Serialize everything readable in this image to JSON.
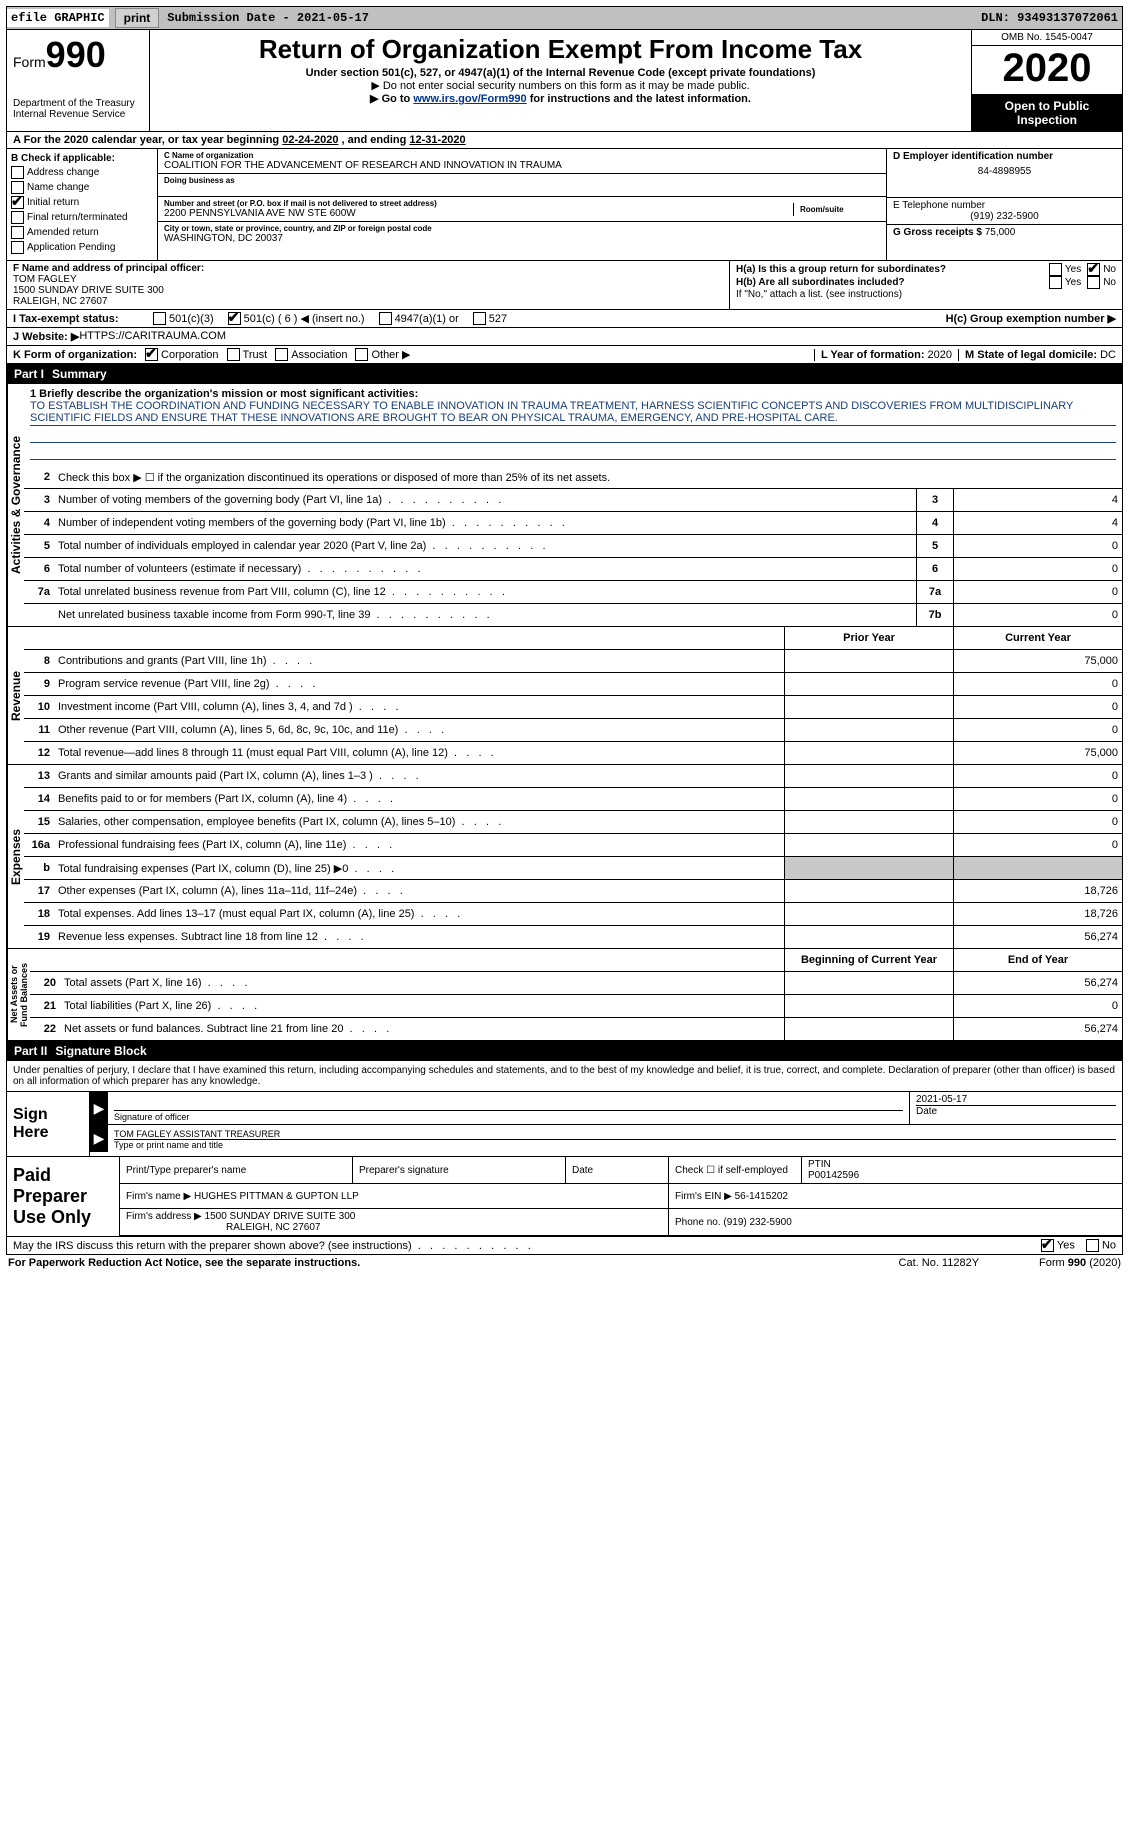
{
  "topbar": {
    "efile": "efile GRAPHIC",
    "print": "print",
    "sub_label": "Submission Date - ",
    "sub_date": "2021-05-17",
    "dln_label": "DLN: ",
    "dln": "93493137072061"
  },
  "header": {
    "form": "Form",
    "num": "990",
    "dept": "Department of the Treasury\nInternal Revenue Service",
    "title": "Return of Organization Exempt From Income Tax",
    "sub1": "Under section 501(c), 527, or 4947(a)(1) of the Internal Revenue Code (except private foundations)",
    "sub2": "▶ Do not enter social security numbers on this form as it may be made public.",
    "sub3_a": "▶ Go to ",
    "sub3_link": "www.irs.gov/Form990",
    "sub3_b": " for instructions and the latest information.",
    "omb": "OMB No. 1545-0047",
    "year": "2020",
    "opi": "Open to Public Inspection"
  },
  "A": {
    "text_a": "A For the 2020 calendar year, or tax year beginning ",
    "begin": "02-24-2020",
    "text_b": "   , and ending ",
    "end": "12-31-2020"
  },
  "B": {
    "title": "B Check if applicable:",
    "items": [
      {
        "label": "Address change",
        "checked": false
      },
      {
        "label": "Name change",
        "checked": false
      },
      {
        "label": "Initial return",
        "checked": true
      },
      {
        "label": "Final return/terminated",
        "checked": false
      },
      {
        "label": "Amended return",
        "checked": false
      },
      {
        "label": "Application Pending",
        "checked": false
      }
    ]
  },
  "C": {
    "name_label": "C Name of organization",
    "name": "COALITION FOR THE ADVANCEMENT OF RESEARCH AND INNOVATION IN TRAUMA",
    "dba_label": "Doing business as",
    "dba": "",
    "addr_label": "Number and street (or P.O. box if mail is not delivered to street address)",
    "room_label": "Room/suite",
    "addr": "2200 PENNSYLVANIA AVE NW STE 600W",
    "city_label": "City or town, state or province, country, and ZIP or foreign postal code",
    "city": "WASHINGTON, DC  20037"
  },
  "D": {
    "label": "D Employer identification number",
    "ein": "84-4898955"
  },
  "E": {
    "label": "E Telephone number",
    "phone": "(919) 232-5900"
  },
  "G": {
    "label": "G Gross receipts $ ",
    "val": "75,000"
  },
  "F": {
    "label": "F  Name and address of principal officer:",
    "name": "TOM FAGLEY",
    "addr1": "1500 SUNDAY DRIVE SUITE 300",
    "addr2": "RALEIGH, NC  27607"
  },
  "H": {
    "a": "H(a)  Is this a group return for subordinates?",
    "a_yes": false,
    "a_no": true,
    "b": "H(b)  Are all subordinates included?",
    "b_note": "If \"No,\" attach a list. (see instructions)",
    "c": "H(c)  Group exemption number ▶"
  },
  "I": {
    "label": "I   Tax-exempt status:",
    "c3": false,
    "c6": true,
    "c6_text": "501(c) ( 6 ) ◀ (insert no.)",
    "a4947": "4947(a)(1) or",
    "s527": "527"
  },
  "J": {
    "label": "J   Website: ▶ ",
    "url": "HTTPS://CARITRAUMA.COM"
  },
  "K": {
    "label": "K Form of organization:",
    "corp": true,
    "trust": false,
    "assoc": false,
    "other": false,
    "corp_t": "Corporation",
    "trust_t": "Trust",
    "assoc_t": "Association",
    "other_t": "Other ▶"
  },
  "L": {
    "label": "L Year of formation: ",
    "val": "2020"
  },
  "M": {
    "label": "M State of legal domicile: ",
    "val": "DC"
  },
  "part1": {
    "name": "Part I",
    "title": "Summary"
  },
  "sec_labels": {
    "ag": "Activities & Governance",
    "rev": "Revenue",
    "exp": "Expenses",
    "na": "Net Assets or\nFund Balances"
  },
  "q1": {
    "label": "1  Briefly describe the organization's mission or most significant activities:",
    "text": "TO ESTABLISH THE COORDINATION AND FUNDING NECESSARY TO ENABLE INNOVATION IN TRAUMA TREATMENT, HARNESS SCIENTIFIC CONCEPTS AND DISCOVERIES FROM MULTIDISCIPLINARY SCIENTIFIC FIELDS AND ENSURE THAT THESE INNOVATIONS ARE BROUGHT TO BEAR ON PHYSICAL TRAUMA, EMERGENCY, AND PRE-HOSPITAL CARE."
  },
  "rows_ag": [
    {
      "n": "2",
      "desc": "Check this box ▶ ☐ if the organization discontinued its operations or disposed of more than 25% of its net assets.",
      "box": "",
      "val": ""
    },
    {
      "n": "3",
      "desc": "Number of voting members of the governing body (Part VI, line 1a)",
      "box": "3",
      "val": "4"
    },
    {
      "n": "4",
      "desc": "Number of independent voting members of the governing body (Part VI, line 1b)",
      "box": "4",
      "val": "4"
    },
    {
      "n": "5",
      "desc": "Total number of individuals employed in calendar year 2020 (Part V, line 2a)",
      "box": "5",
      "val": "0"
    },
    {
      "n": "6",
      "desc": "Total number of volunteers (estimate if necessary)",
      "box": "6",
      "val": "0"
    },
    {
      "n": "7a",
      "desc": "Total unrelated business revenue from Part VIII, column (C), line 12",
      "box": "7a",
      "val": "0"
    },
    {
      "n": "",
      "desc": "Net unrelated business taxable income from Form 990-T, line 39",
      "box": "7b",
      "val": "0"
    }
  ],
  "colhdrs": {
    "prior": "Prior Year",
    "current": "Current Year"
  },
  "rows_rev": [
    {
      "n": "8",
      "desc": "Contributions and grants (Part VIII, line 1h)",
      "prior": "",
      "cur": "75,000"
    },
    {
      "n": "9",
      "desc": "Program service revenue (Part VIII, line 2g)",
      "prior": "",
      "cur": "0"
    },
    {
      "n": "10",
      "desc": "Investment income (Part VIII, column (A), lines 3, 4, and 7d )",
      "prior": "",
      "cur": "0"
    },
    {
      "n": "11",
      "desc": "Other revenue (Part VIII, column (A), lines 5, 6d, 8c, 9c, 10c, and 11e)",
      "prior": "",
      "cur": "0"
    },
    {
      "n": "12",
      "desc": "Total revenue—add lines 8 through 11 (must equal Part VIII, column (A), line 12)",
      "prior": "",
      "cur": "75,000"
    }
  ],
  "rows_exp": [
    {
      "n": "13",
      "desc": "Grants and similar amounts paid (Part IX, column (A), lines 1–3 )",
      "prior": "",
      "cur": "0"
    },
    {
      "n": "14",
      "desc": "Benefits paid to or for members (Part IX, column (A), line 4)",
      "prior": "",
      "cur": "0"
    },
    {
      "n": "15",
      "desc": "Salaries, other compensation, employee benefits (Part IX, column (A), lines 5–10)",
      "prior": "",
      "cur": "0"
    },
    {
      "n": "16a",
      "desc": "Professional fundraising fees (Part IX, column (A), line 11e)",
      "prior": "",
      "cur": "0"
    },
    {
      "n": "b",
      "desc": "Total fundraising expenses (Part IX, column (D), line 25) ▶0",
      "prior": "shade",
      "cur": "shade"
    },
    {
      "n": "17",
      "desc": "Other expenses (Part IX, column (A), lines 11a–11d, 11f–24e)",
      "prior": "",
      "cur": "18,726"
    },
    {
      "n": "18",
      "desc": "Total expenses. Add lines 13–17 (must equal Part IX, column (A), line 25)",
      "prior": "",
      "cur": "18,726"
    },
    {
      "n": "19",
      "desc": "Revenue less expenses. Subtract line 18 from line 12",
      "prior": "",
      "cur": "56,274"
    }
  ],
  "colhdrs2": {
    "begin": "Beginning of Current Year",
    "end": "End of Year"
  },
  "rows_na": [
    {
      "n": "20",
      "desc": "Total assets (Part X, line 16)",
      "prior": "",
      "cur": "56,274"
    },
    {
      "n": "21",
      "desc": "Total liabilities (Part X, line 26)",
      "prior": "",
      "cur": "0"
    },
    {
      "n": "22",
      "desc": "Net assets or fund balances. Subtract line 21 from line 20",
      "prior": "",
      "cur": "56,274"
    }
  ],
  "part2": {
    "name": "Part II",
    "title": "Signature Block"
  },
  "penalties": "Under penalties of perjury, I declare that I have examined this return, including accompanying schedules and statements, and to the best of my knowledge and belief, it is true, correct, and complete. Declaration of preparer (other than officer) is based on all information of which preparer has any knowledge.",
  "sign": {
    "here": "Sign Here",
    "sig_of_officer": "Signature of officer",
    "date_label": "Date",
    "date": "2021-05-17",
    "name_title": "TOM FAGLEY ASSISTANT TREASURER",
    "type_label": "Type or print name and title"
  },
  "paid": {
    "label": "Paid Preparer Use Only",
    "h_name": "Print/Type preparer's name",
    "h_sig": "Preparer's signature",
    "h_date": "Date",
    "h_check": "Check ☐ if self-employed",
    "h_ptin": "PTIN",
    "ptin": "P00142596",
    "firm_name_l": "Firm's name      ▶ ",
    "firm_name": "HUGHES PITTMAN & GUPTON LLP",
    "firm_ein_l": "Firm's EIN ▶ ",
    "firm_ein": "56-1415202",
    "firm_addr_l": "Firm's address ▶ ",
    "firm_addr1": "1500 SUNDAY DRIVE SUITE 300",
    "firm_addr2": "RALEIGH, NC  27607",
    "phone_l": "Phone no. ",
    "phone": "(919) 232-5900"
  },
  "discuss": {
    "q": "May the IRS discuss this return with the preparer shown above? (see instructions)",
    "yes": true,
    "no": false
  },
  "footer": {
    "left": "For Paperwork Reduction Act Notice, see the separate instructions.",
    "mid": "Cat. No. 11282Y",
    "right": "Form 990 (2020)"
  }
}
